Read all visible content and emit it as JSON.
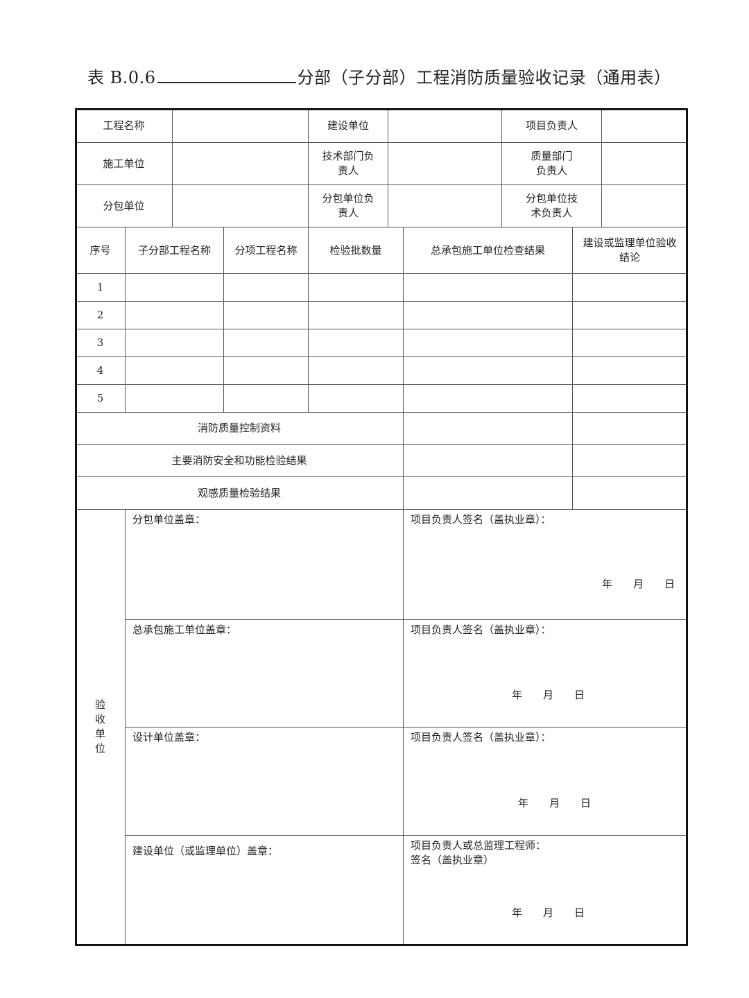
{
  "title": {
    "prefix": "表 B.0.6",
    "suffix": "分部（子分部）工程消防质量验收记录（通用表）"
  },
  "info": {
    "project_name": "工程名称",
    "builder": "建设单位",
    "project_lead": "项目负责人",
    "contractor": "施工单位",
    "tech_lead": "技术部门负责人",
    "quality_lead": "质量部门负责人",
    "subcontractor": "分包单位",
    "sub_lead": "分包单位负责人",
    "sub_tech_lead": "分包单位技术负责人"
  },
  "headers": [
    "序号",
    "子分部工程名称",
    "分项工程名称",
    "检验批数量",
    "总承包施工单位检查结果",
    "建设或监理单位验收结论"
  ],
  "rows": [
    "1",
    "2",
    "3",
    "4",
    "5"
  ],
  "summary": [
    "消防质量控制资料",
    "主要消防安全和功能检验结果",
    "观感质量检验结果"
  ],
  "acceptance": {
    "label": "验收单位",
    "blocks": [
      {
        "left": "分包单位盖章：",
        "right": "项目负责人签名（盖执业章）："
      },
      {
        "left": "总承包施工单位盖章：",
        "right": "项目负责人签名（盖执业章）："
      },
      {
        "left": "设计单位盖章：",
        "right": "项目负责人签名（盖执业章）："
      },
      {
        "left": "建设单位（或监理单位）盖章：",
        "right": "项目负责人或总监理工程师：\n签名（盖执业章）"
      }
    ],
    "date": {
      "year": "年",
      "month": "月",
      "day": "日"
    }
  }
}
